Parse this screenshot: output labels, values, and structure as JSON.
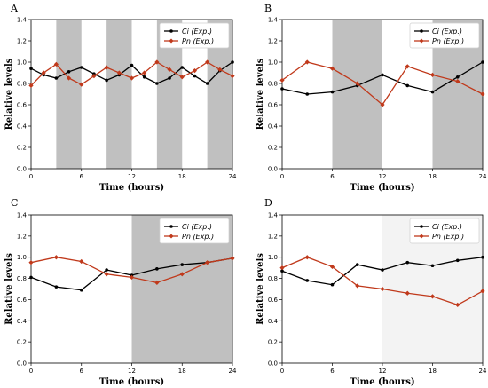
{
  "chart_data": [
    {
      "panel_label": "A",
      "type": "line",
      "xlabel": "Time (hours)",
      "ylabel": "Relative levels",
      "xlim": [
        0,
        24
      ],
      "ylim": [
        0,
        1.4
      ],
      "xticks": [
        "0",
        "6",
        "12",
        "18",
        "24"
      ],
      "yticks": [
        "0.0",
        "0.2",
        "0.4",
        "0.6",
        "0.8",
        "1.0",
        "1.2",
        "1.4"
      ],
      "legend": "top-right",
      "shade_color": "#c0c0c0",
      "shaded_intervals": [
        [
          3,
          6
        ],
        [
          9,
          12
        ],
        [
          15,
          18
        ],
        [
          21,
          24
        ]
      ],
      "series": [
        {
          "name": "Ci (Exp.)",
          "color": "#000000",
          "marker": "circle",
          "x": [
            0,
            1.5,
            3,
            4.5,
            6,
            7.5,
            9,
            10.5,
            12,
            13.5,
            15,
            16.5,
            18,
            19.5,
            21,
            22.5,
            24
          ],
          "y": [
            0.94,
            0.88,
            0.85,
            0.91,
            0.95,
            0.89,
            0.83,
            0.88,
            0.97,
            0.86,
            0.8,
            0.85,
            0.95,
            0.87,
            0.8,
            0.92,
            1.0
          ]
        },
        {
          "name": "Pn (Exp.)",
          "color": "#c0391b",
          "marker": "diamond",
          "x": [
            0,
            1.5,
            3,
            4.5,
            6,
            7.5,
            9,
            10.5,
            12,
            13.5,
            15,
            16.5,
            18,
            19.5,
            21,
            22.5,
            24
          ],
          "y": [
            0.78,
            0.9,
            0.98,
            0.85,
            0.79,
            0.87,
            0.95,
            0.9,
            0.85,
            0.9,
            1.0,
            0.93,
            0.86,
            0.92,
            1.0,
            0.93,
            0.87
          ]
        }
      ]
    },
    {
      "panel_label": "B",
      "type": "line",
      "xlabel": "Time (hours)",
      "ylabel": "Relative levels",
      "xlim": [
        0,
        24
      ],
      "ylim": [
        0,
        1.4
      ],
      "xticks": [
        "0",
        "6",
        "12",
        "18",
        "24"
      ],
      "yticks": [
        "0.0",
        "0.2",
        "0.4",
        "0.6",
        "0.8",
        "1.0",
        "1.2",
        "1.4"
      ],
      "legend": "top-right",
      "shade_color": "#c0c0c0",
      "shaded_intervals": [
        [
          6,
          12
        ],
        [
          18,
          24
        ]
      ],
      "series": [
        {
          "name": "Ci (Exp.)",
          "color": "#000000",
          "marker": "circle",
          "x": [
            0,
            3,
            6,
            9,
            12,
            15,
            18,
            21,
            24
          ],
          "y": [
            0.75,
            0.7,
            0.72,
            0.78,
            0.88,
            0.78,
            0.72,
            0.86,
            1.0
          ]
        },
        {
          "name": "Pn (Exp.)",
          "color": "#c0391b",
          "marker": "diamond",
          "x": [
            0,
            3,
            6,
            9,
            12,
            15,
            18,
            21,
            24
          ],
          "y": [
            0.83,
            1.0,
            0.94,
            0.8,
            0.6,
            0.96,
            0.88,
            0.82,
            0.7
          ]
        }
      ]
    },
    {
      "panel_label": "C",
      "type": "line",
      "xlabel": "Time (hours)",
      "ylabel": "Relative levels",
      "xlim": [
        0,
        24
      ],
      "ylim": [
        0,
        1.4
      ],
      "xticks": [
        "0",
        "6",
        "12",
        "18",
        "24"
      ],
      "yticks": [
        "0.0",
        "0.2",
        "0.4",
        "0.6",
        "0.8",
        "1.0",
        "1.2",
        "1.4"
      ],
      "legend": "top-right",
      "shade_color": "#c0c0c0",
      "shaded_intervals": [
        [
          12,
          24
        ]
      ],
      "series": [
        {
          "name": "Ci (Exp.)",
          "color": "#000000",
          "marker": "circle",
          "x": [
            0,
            3,
            6,
            9,
            12,
            15,
            18,
            21,
            24
          ],
          "y": [
            0.81,
            0.72,
            0.69,
            0.88,
            0.83,
            0.89,
            0.93,
            0.95,
            0.99
          ]
        },
        {
          "name": "Pn (Exp.)",
          "color": "#c0391b",
          "marker": "diamond",
          "x": [
            0,
            3,
            6,
            9,
            12,
            15,
            18,
            21,
            24
          ],
          "y": [
            0.95,
            1.0,
            0.96,
            0.84,
            0.81,
            0.76,
            0.84,
            0.95,
            0.99
          ]
        }
      ]
    },
    {
      "panel_label": "D",
      "type": "line",
      "xlabel": "Time (hours)",
      "ylabel": "Relative levels",
      "xlim": [
        0,
        24
      ],
      "ylim": [
        0,
        1.4
      ],
      "xticks": [
        "0",
        "6",
        "12",
        "18",
        "24"
      ],
      "yticks": [
        "0.0",
        "0.2",
        "0.4",
        "0.6",
        "0.8",
        "1.0",
        "1.2",
        "1.4"
      ],
      "legend": "top-right",
      "shade_color": "#f3f3f3",
      "shaded_intervals": [
        [
          12,
          24
        ]
      ],
      "series": [
        {
          "name": "Ci (Exp.)",
          "color": "#000000",
          "marker": "circle",
          "x": [
            0,
            3,
            6,
            9,
            12,
            15,
            18,
            21,
            24
          ],
          "y": [
            0.87,
            0.78,
            0.74,
            0.93,
            0.88,
            0.95,
            0.92,
            0.97,
            1.0
          ]
        },
        {
          "name": "Pn (Exp.)",
          "color": "#c0391b",
          "marker": "diamond",
          "x": [
            0,
            3,
            6,
            9,
            12,
            15,
            18,
            21,
            24
          ],
          "y": [
            0.9,
            1.0,
            0.91,
            0.73,
            0.7,
            0.66,
            0.63,
            0.55,
            0.68
          ]
        }
      ]
    }
  ]
}
